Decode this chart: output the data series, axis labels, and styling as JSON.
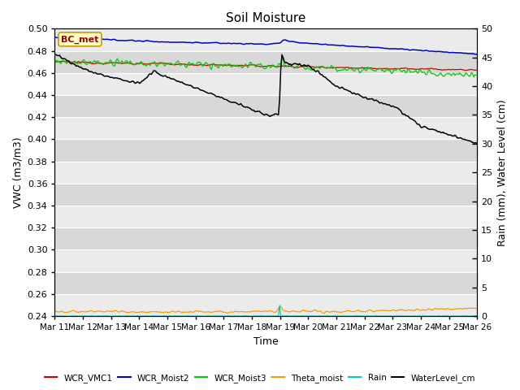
{
  "title": "Soil Moisture",
  "xlabel": "Time",
  "ylabel_left": "VWC (m3/m3)",
  "ylabel_right": "Rain (mm), Water Level (cm)",
  "annotation": "BC_met",
  "ylim_left": [
    0.24,
    0.5
  ],
  "ylim_right": [
    0,
    50
  ],
  "yticks_left": [
    0.24,
    0.26,
    0.28,
    0.3,
    0.32,
    0.34,
    0.36,
    0.38,
    0.4,
    0.42,
    0.44,
    0.46,
    0.48,
    0.5
  ],
  "yticks_right": [
    0,
    5,
    10,
    15,
    20,
    25,
    30,
    35,
    40,
    45,
    50
  ],
  "xtick_labels": [
    "Mar 11",
    "Mar 12",
    "Mar 13",
    "Mar 14",
    "Mar 15",
    "Mar 16",
    "Mar 17",
    "Mar 18",
    "Mar 19",
    "Mar 20",
    "Mar 21",
    "Mar 22",
    "Mar 23",
    "Mar 24",
    "Mar 25",
    "Mar 26"
  ],
  "legend_labels": [
    "WCR_VMC1",
    "WCR_Moist2",
    "WCR_Moist3",
    "Theta_moist",
    "Rain",
    "WaterLevel_cm"
  ],
  "legend_colors": [
    "#cc0000",
    "#0000cc",
    "#00cc00",
    "#ff9900",
    "#00cccc",
    "#000000"
  ],
  "background_color": "#e0e0e0",
  "band_color_light": "#ebebeb",
  "band_color_dark": "#d8d8d8"
}
